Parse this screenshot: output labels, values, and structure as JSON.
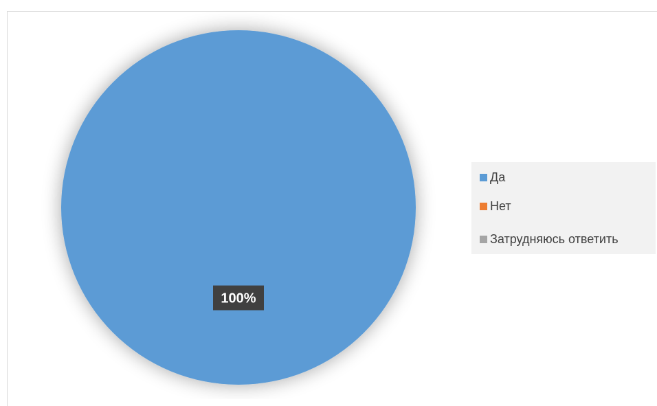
{
  "chart_data": {
    "type": "pie",
    "categories": [
      "Да",
      "Нет",
      "Затрудняюсь ответить"
    ],
    "values": [
      100,
      0,
      0
    ],
    "colors": [
      "#5b9bd5",
      "#ed7d31",
      "#a5a5a5"
    ],
    "data_labels": [
      "100%"
    ],
    "legend_position": "right"
  }
}
